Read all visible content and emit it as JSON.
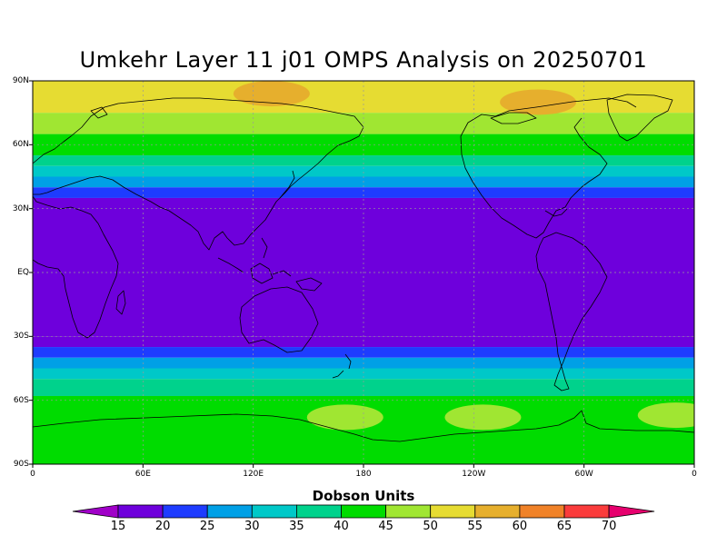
{
  "title": "Umkehr Layer 11 j01 OMPS Analysis on 20250701",
  "lat_labels": [
    "90N",
    "60N",
    "30N",
    "EQ",
    "30S",
    "60S",
    "90S"
  ],
  "lon_labels": [
    "0",
    "60E",
    "120E",
    "180",
    "120W",
    "60W",
    "0"
  ],
  "colorbar": {
    "title": "Dobson Units",
    "ticks": [
      "15",
      "20",
      "25",
      "30",
      "35",
      "40",
      "45",
      "50",
      "55",
      "60",
      "65",
      "70"
    ],
    "colors": [
      "#a000c8",
      "#6e00dc",
      "#1e3cff",
      "#00a0e6",
      "#00c8c8",
      "#00d28c",
      "#00dc00",
      "#a0e632",
      "#e6dc32",
      "#e6af2d",
      "#f08228",
      "#fa3c3c",
      "#e6006e"
    ]
  },
  "chart_data": {
    "type": "heatmap",
    "title": "Umkehr Layer 11 j01 OMPS Analysis on 20250701",
    "units": "Dobson Units",
    "x_range": [
      "0",
      "0"
    ],
    "y_range": [
      "90S",
      "90N"
    ],
    "levels": [
      15,
      20,
      25,
      30,
      35,
      40,
      45,
      50,
      55,
      60,
      65,
      70
    ],
    "zonal_bands": [
      {
        "lat": [
          75,
          90
        ],
        "value_DU": 52
      },
      {
        "lat": [
          65,
          75
        ],
        "value_DU": 47
      },
      {
        "lat": [
          55,
          65
        ],
        "value_DU": 43
      },
      {
        "lat": [
          50,
          55
        ],
        "value_DU": 38
      },
      {
        "lat": [
          45,
          50
        ],
        "value_DU": 33
      },
      {
        "lat": [
          40,
          45
        ],
        "value_DU": 28
      },
      {
        "lat": [
          35,
          40
        ],
        "value_DU": 23
      },
      {
        "lat": [
          -30,
          35
        ],
        "value_DU": 15
      },
      {
        "lat": [
          -35,
          -30
        ],
        "value_DU": 19
      },
      {
        "lat": [
          -40,
          -35
        ],
        "value_DU": 24
      },
      {
        "lat": [
          -45,
          -40
        ],
        "value_DU": 29
      },
      {
        "lat": [
          -50,
          -45
        ],
        "value_DU": 34
      },
      {
        "lat": [
          -58,
          -50
        ],
        "value_DU": 39
      },
      {
        "lat": [
          -90,
          -58
        ],
        "value_DU": 44
      }
    ],
    "maxima": [
      {
        "lat": 84,
        "lon": 130,
        "value_DU": 56
      },
      {
        "lat": 80,
        "lon": 275,
        "value_DU": 56
      },
      {
        "lat": -68,
        "lon": 170,
        "value_DU": 46
      },
      {
        "lat": -68,
        "lon": 245,
        "value_DU": 46
      },
      {
        "lat": -67,
        "lon": 350,
        "value_DU": 46
      }
    ]
  }
}
